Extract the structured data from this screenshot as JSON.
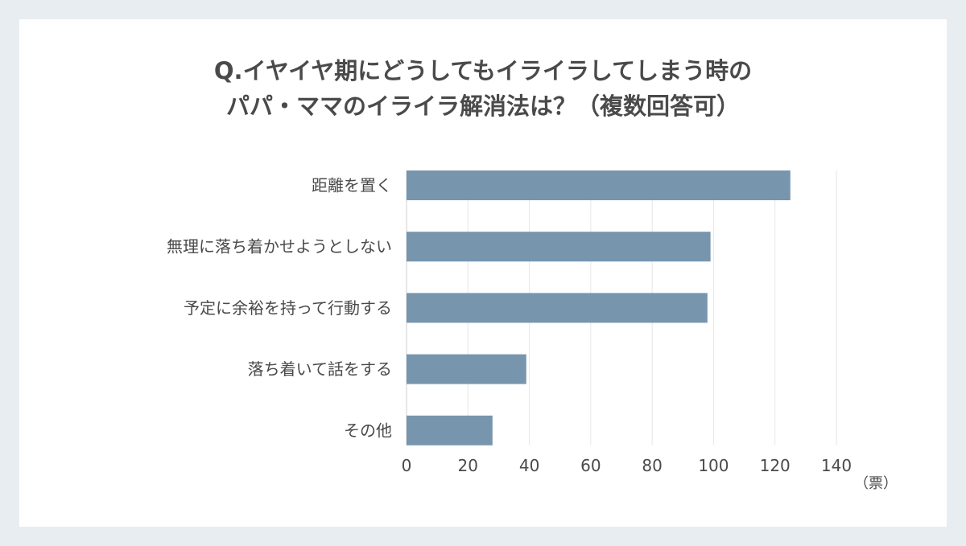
{
  "chart_data": {
    "type": "bar",
    "orientation": "horizontal",
    "title_lines": [
      "Q.イヤイヤ期にどうしてもイライラしてしまう時の",
      "パパ・ママのイライラ解消法は？（複数回答可）"
    ],
    "categories": [
      "距離を置く",
      "無理に落ち着かせようとしない",
      "予定に余裕を持って行動する",
      "落ち着いて話をする",
      "その他"
    ],
    "values": [
      125,
      99,
      98,
      39,
      28
    ],
    "xlim": [
      0,
      140
    ],
    "x_ticks": [
      0,
      20,
      40,
      60,
      80,
      100,
      120,
      140
    ],
    "unit": "（票）",
    "bar_color": "#7795ad",
    "grid": "vertical"
  }
}
